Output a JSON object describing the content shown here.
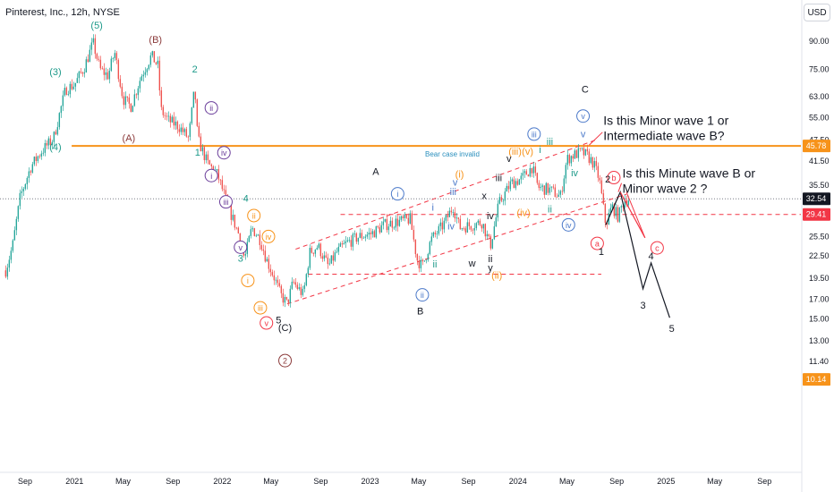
{
  "header": {
    "title": "Pinterest, Inc., 12h, NYSE",
    "currency": "USD"
  },
  "price_scale": {
    "ticks": [
      "90.00",
      "75.00",
      "63.00",
      "55.00",
      "47.50",
      "41.50",
      "35.50",
      "32.54",
      "29.41",
      "25.50",
      "22.50",
      "19.50",
      "17.00",
      "15.00",
      "13.00",
      "11.40",
      "10.14"
    ],
    "labels": [
      {
        "value": "45.78",
        "color": "#f7931a"
      },
      {
        "value": "32.54",
        "color": "#131722"
      },
      {
        "value": "29.41",
        "color": "#f23645"
      },
      {
        "value": "10.14",
        "color": "#f7931a"
      }
    ]
  },
  "time_axis": {
    "labels": [
      "Sep",
      "2021",
      "May",
      "Sep",
      "2022",
      "May",
      "Sep",
      "2023",
      "May",
      "Sep",
      "2024",
      "May",
      "Sep",
      "2025",
      "May",
      "Sep"
    ]
  },
  "colors": {
    "bull": "#26a69a",
    "bear": "#ef5350",
    "orange": "#f7931a",
    "red": "#f23645",
    "blue": "#4a78c9",
    "purple": "#6a3d9a",
    "teal": "#1e9a8a",
    "maroon": "#8b3a3a",
    "dark": "#131722"
  },
  "chart_data": {
    "type": "candlestick",
    "title": "Pinterest, Inc., 12h, NYSE",
    "y_scale": "log",
    "ylim": [
      10.14,
      90
    ],
    "x_range": [
      "2020-07",
      "2025-11"
    ],
    "price_path": [
      [
        "2020-07-15",
        20.5
      ],
      [
        "2020-08-01",
        24
      ],
      [
        "2020-08-20",
        33
      ],
      [
        "2020-09-15",
        40
      ],
      [
        "2020-10-10",
        44
      ],
      [
        "2020-11-10",
        48
      ],
      [
        "2020-12-10",
        66
      ],
      [
        "2021-01-01",
        68
      ],
      [
        "2021-01-25",
        76
      ],
      [
        "2021-02-16",
        89
      ],
      [
        "2021-03-05",
        75
      ],
      [
        "2021-03-25",
        72
      ],
      [
        "2021-04-10",
        84
      ],
      [
        "2021-05-01",
        62
      ],
      [
        "2021-05-20",
        59
      ],
      [
        "2021-06-15",
        72
      ],
      [
        "2021-07-10",
        82
      ],
      [
        "2021-07-28",
        76
      ],
      [
        "2021-08-01",
        58
      ],
      [
        "2021-08-20",
        54
      ],
      [
        "2021-09-15",
        52
      ],
      [
        "2021-10-10",
        48
      ],
      [
        "2021-10-25",
        67
      ],
      [
        "2021-11-01",
        48
      ],
      [
        "2021-11-25",
        41
      ],
      [
        "2021-12-20",
        38
      ],
      [
        "2022-01-15",
        31
      ],
      [
        "2022-02-10",
        26
      ],
      [
        "2022-02-25",
        22
      ],
      [
        "2022-03-15",
        27
      ],
      [
        "2022-04-05",
        25
      ],
      [
        "2022-04-20",
        22
      ],
      [
        "2022-05-10",
        19.5
      ],
      [
        "2022-05-25",
        17.5
      ],
      [
        "2022-06-10",
        16.5
      ],
      [
        "2022-06-25",
        19
      ],
      [
        "2022-07-20",
        17.5
      ],
      [
        "2022-08-05",
        23
      ],
      [
        "2022-08-25",
        24
      ],
      [
        "2022-09-20",
        21
      ],
      [
        "2022-10-10",
        23
      ],
      [
        "2022-11-05",
        24.5
      ],
      [
        "2022-12-05",
        25.5
      ],
      [
        "2023-01-05",
        26
      ],
      [
        "2023-02-05",
        27.5
      ],
      [
        "2023-03-05",
        28
      ],
      [
        "2023-04-10",
        28.5
      ],
      [
        "2023-04-27",
        22
      ],
      [
        "2023-05-10",
        21
      ],
      [
        "2023-06-01",
        25
      ],
      [
        "2023-07-01",
        27.5
      ],
      [
        "2023-07-25",
        31
      ],
      [
        "2023-08-10",
        27
      ],
      [
        "2023-09-10",
        27.5
      ],
      [
        "2023-10-05",
        28
      ],
      [
        "2023-10-25",
        24
      ],
      [
        "2023-11-15",
        31.5
      ],
      [
        "2023-12-15",
        36
      ],
      [
        "2024-01-10",
        37
      ],
      [
        "2024-02-05",
        40
      ],
      [
        "2024-02-20",
        35
      ],
      [
        "2024-03-20",
        34.5
      ],
      [
        "2024-04-15",
        33
      ],
      [
        "2024-05-01",
        42
      ],
      [
        "2024-05-15",
        43
      ],
      [
        "2024-06-05",
        44
      ],
      [
        "2024-06-20",
        43
      ],
      [
        "2024-07-05",
        41
      ],
      [
        "2024-07-20",
        37
      ],
      [
        "2024-08-05",
        27.5
      ],
      [
        "2024-08-20",
        31
      ],
      [
        "2024-09-05",
        29
      ],
      [
        "2024-09-20",
        32.5
      ],
      [
        "2024-10-01",
        32.5
      ]
    ],
    "projections": [
      {
        "name": "black",
        "color": "#131722",
        "points": [
          [
            "2024-08-05",
            27.5
          ],
          [
            "2024-09-10",
            34
          ],
          [
            "2024-11-05",
            18.2
          ],
          [
            "2024-11-25",
            21.5
          ],
          [
            "2025-01-10",
            15.1
          ]
        ]
      },
      {
        "name": "red",
        "color": "#f23645",
        "points": [
          [
            "2024-09-10",
            34
          ],
          [
            "2024-11-10",
            25.3
          ]
        ]
      }
    ],
    "levels": [
      {
        "name": "orange",
        "value": 45.78,
        "from": "2020-12-25",
        "to": "2025-11-30",
        "color": "#f7931a",
        "style": "solid",
        "label": "Bear case invalid"
      },
      {
        "name": "dark",
        "value": 32.54,
        "from": "2020-07-01",
        "to": "2025-11-30",
        "color": "#787b86",
        "style": "dotted"
      },
      {
        "name": "red",
        "value": 29.41,
        "from": "2022-10-20",
        "to": "2025-11-30",
        "color": "#f23645",
        "style": "dashed"
      },
      {
        "name": "red-2",
        "value": 20.0,
        "from": "2022-08-01",
        "to": "2024-07-25",
        "color": "#f23645",
        "style": "dashed"
      }
    ],
    "channel_lines": [
      {
        "color": "#f23645",
        "from": [
          "2022-06-10",
          16.5
        ],
        "to": [
          "2024-09-25",
          33.5
        ]
      },
      {
        "color": "#f23645",
        "from": [
          "2022-07-01",
          23.5
        ],
        "to": [
          "2024-07-10",
          47.5
        ]
      }
    ],
    "wave_labels": [
      {
        "text": "(5)",
        "date": "2021-02-25",
        "price": 100,
        "color": "#1e9a8a",
        "style": "plain"
      },
      {
        "text": "(3)",
        "date": "2020-11-15",
        "price": 74,
        "color": "#1e9a8a",
        "style": "plain"
      },
      {
        "text": "(4)",
        "date": "2020-11-15",
        "price": 45.6,
        "color": "#1e9a8a",
        "style": "plain"
      },
      {
        "text": "(B)",
        "date": "2021-07-20",
        "price": 91,
        "color": "#8b3a3a",
        "style": "plain"
      },
      {
        "text": "(A)",
        "date": "2021-05-15",
        "price": 48.3,
        "color": "#8b3a3a",
        "style": "plain"
      },
      {
        "text": "2",
        "date": "2021-10-25",
        "price": 75.3,
        "color": "#1e9a8a",
        "style": "plain"
      },
      {
        "text": "1",
        "date": "2021-11-01",
        "price": 44,
        "color": "#1e9a8a",
        "style": "plain"
      },
      {
        "text": "4",
        "date": "2022-02-28",
        "price": 32.7,
        "color": "#1e9a8a",
        "style": "plain"
      },
      {
        "text": "3",
        "date": "2022-02-15",
        "price": 22.2,
        "color": "#1e9a8a",
        "style": "plain"
      },
      {
        "text": "ii",
        "date": "2021-12-05",
        "price": 58.5,
        "color": "#6a3d9a",
        "style": "circle"
      },
      {
        "text": "iv",
        "date": "2022-01-05",
        "price": 43.8,
        "color": "#6a3d9a",
        "style": "circle"
      },
      {
        "text": "i",
        "date": "2021-12-05",
        "price": 37.8,
        "color": "#6a3d9a",
        "style": "circle"
      },
      {
        "text": "iii",
        "date": "2022-01-10",
        "price": 31.9,
        "color": "#6a3d9a",
        "style": "circle"
      },
      {
        "text": "v",
        "date": "2022-02-15",
        "price": 23.8,
        "color": "#6a3d9a",
        "style": "circle"
      },
      {
        "text": "ii",
        "date": "2022-03-20",
        "price": 29.2,
        "color": "#f7931a",
        "style": "circle"
      },
      {
        "text": "iv",
        "date": "2022-04-25",
        "price": 25.5,
        "color": "#f7931a",
        "style": "circle"
      },
      {
        "text": "i",
        "date": "2022-03-05",
        "price": 19.2,
        "color": "#f7931a",
        "style": "circle"
      },
      {
        "text": "iii",
        "date": "2022-04-05",
        "price": 16.1,
        "color": "#f7931a",
        "style": "circle"
      },
      {
        "text": "v",
        "date": "2022-04-20",
        "price": 14.6,
        "color": "#f23645",
        "style": "circle"
      },
      {
        "text": "5",
        "date": "2022-05-20",
        "price": 14.9,
        "color": "#131722",
        "style": "plain"
      },
      {
        "text": "(C)",
        "date": "2022-06-05",
        "price": 14.2,
        "color": "#131722",
        "style": "plain"
      },
      {
        "text": "2",
        "date": "2022-06-05",
        "price": 11.45,
        "color": "#8b3a3a",
        "style": "circle"
      },
      {
        "text": "A",
        "date": "2023-01-15",
        "price": 38.8,
        "color": "#131722",
        "style": "plain"
      },
      {
        "text": "B",
        "date": "2023-05-05",
        "price": 15.8,
        "color": "#131722",
        "style": "plain"
      },
      {
        "text": "C",
        "date": "2024-06-15",
        "price": 66,
        "color": "#131722",
        "style": "plain"
      },
      {
        "text": "i",
        "date": "2023-03-10",
        "price": 33.6,
        "color": "#4a78c9",
        "style": "circle"
      },
      {
        "text": "ii",
        "date": "2023-05-10",
        "price": 17.5,
        "color": "#4a78c9",
        "style": "circle"
      },
      {
        "text": "iii",
        "date": "2024-02-10",
        "price": 49.4,
        "color": "#4a78c9",
        "style": "circle"
      },
      {
        "text": "iv",
        "date": "2024-05-05",
        "price": 27.5,
        "color": "#4a78c9",
        "style": "circle"
      },
      {
        "text": "v",
        "date": "2024-06-10",
        "price": 55.5,
        "color": "#4a78c9",
        "style": "circle"
      },
      {
        "text": "v",
        "date": "2024-06-10",
        "price": 49.5,
        "color": "#4a78c9",
        "style": "plain"
      },
      {
        "text": "i",
        "date": "2023-06-05",
        "price": 30.8,
        "color": "#4a78c9",
        "style": "plain"
      },
      {
        "text": "iii",
        "date": "2023-07-25",
        "price": 34.1,
        "color": "#4a78c9",
        "style": "plain"
      },
      {
        "text": "iv",
        "date": "2023-07-20",
        "price": 27.3,
        "color": "#4a78c9",
        "style": "plain"
      },
      {
        "text": "ii",
        "date": "2023-06-10",
        "price": 21.4,
        "color": "#1e9a8a",
        "style": "plain"
      },
      {
        "text": "v",
        "date": "2023-07-30",
        "price": 36.2,
        "color": "#4a78c9",
        "style": "plain"
      },
      {
        "text": "(i)",
        "date": "2023-08-10",
        "price": 38.2,
        "color": "#f7931a",
        "style": "plain"
      },
      {
        "text": "(iii)",
        "date": "2023-12-25",
        "price": 44.3,
        "color": "#f7931a",
        "style": "plain"
      },
      {
        "text": "(v)",
        "date": "2024-01-25",
        "price": 44.3,
        "color": "#f7931a",
        "style": "plain"
      },
      {
        "text": "(iv)",
        "date": "2024-01-15",
        "price": 29.8,
        "color": "#f7931a",
        "style": "plain"
      },
      {
        "text": "(ii)",
        "date": "2023-11-10",
        "price": 19.9,
        "color": "#f7931a",
        "style": "plain"
      },
      {
        "text": "iii",
        "date": "2023-11-15",
        "price": 37.3,
        "color": "#131722",
        "style": "plain"
      },
      {
        "text": "v",
        "date": "2023-12-10",
        "price": 42.2,
        "color": "#131722",
        "style": "plain"
      },
      {
        "text": "iv",
        "date": "2023-10-25",
        "price": 29.2,
        "color": "#131722",
        "style": "plain"
      },
      {
        "text": "x",
        "date": "2023-10-10",
        "price": 33.2,
        "color": "#131722",
        "style": "plain"
      },
      {
        "text": "w",
        "date": "2023-09-10",
        "price": 21.5,
        "color": "#131722",
        "style": "plain"
      },
      {
        "text": "y",
        "date": "2023-10-25",
        "price": 20.9,
        "color": "#131722",
        "style": "plain"
      },
      {
        "text": "ii",
        "date": "2023-10-25",
        "price": 22.1,
        "color": "#131722",
        "style": "plain"
      },
      {
        "text": "iii",
        "date": "2024-03-20",
        "price": 47.2,
        "color": "#1e9a8a",
        "style": "plain"
      },
      {
        "text": "iv",
        "date": "2024-05-20",
        "price": 38.5,
        "color": "#1e9a8a",
        "style": "plain"
      },
      {
        "text": "ii",
        "date": "2024-03-20",
        "price": 30.5,
        "color": "#1e9a8a",
        "style": "plain"
      },
      {
        "text": "i",
        "date": "2024-02-25",
        "price": 44.8,
        "color": "#1e9a8a",
        "style": "plain"
      },
      {
        "text": "a",
        "date": "2024-07-15",
        "price": 24.4,
        "color": "#f23645",
        "style": "circle"
      },
      {
        "text": "b",
        "date": "2024-08-25",
        "price": 37.3,
        "color": "#f23645",
        "style": "circle"
      },
      {
        "text": "c",
        "date": "2024-12-10",
        "price": 23.7,
        "color": "#f23645",
        "style": "circle"
      },
      {
        "text": "1",
        "date": "2024-07-25",
        "price": 23.2,
        "color": "#131722",
        "style": "plain"
      },
      {
        "text": "2",
        "date": "2024-08-10",
        "price": 37.0,
        "color": "#131722",
        "style": "plain"
      },
      {
        "text": "3",
        "date": "2024-11-05",
        "price": 16.4,
        "color": "#131722",
        "style": "plain"
      },
      {
        "text": "4",
        "date": "2024-11-25",
        "price": 22.5,
        "color": "#131722",
        "style": "plain"
      },
      {
        "text": "5",
        "date": "2025-01-15",
        "price": 14.1,
        "color": "#131722",
        "style": "plain"
      }
    ],
    "notes": [
      {
        "lines": [
          "Is this Minor wave 1 or",
          "Intermediate wave B?"
        ],
        "date": "2024-07-30",
        "price": 52.5
      },
      {
        "lines": [
          "Is this Minute wave B or",
          "Minor wave 2 ?"
        ],
        "date": "2024-09-15",
        "price": 37.3
      }
    ]
  }
}
